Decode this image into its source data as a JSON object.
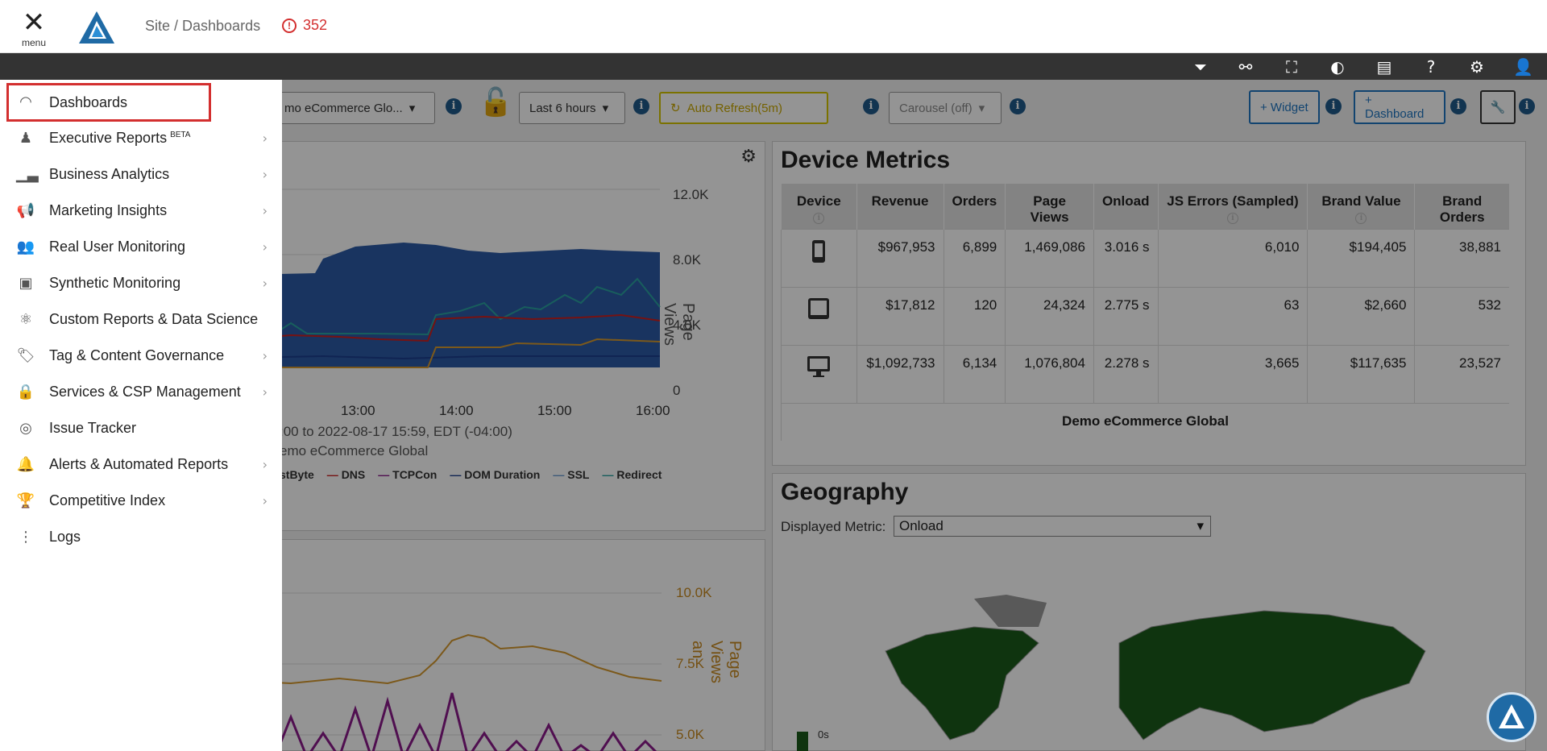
{
  "header": {
    "menu_label": "menu",
    "breadcrumb": "Site / Dashboards",
    "alert_count": "352"
  },
  "toolbar": {
    "icons": [
      "filter-icon",
      "share-icon",
      "fullscreen-icon",
      "contrast-icon",
      "film-icon",
      "help-icon",
      "gear-icon",
      "user-icon"
    ]
  },
  "controls": {
    "dashboard_select": "mo eCommerce Glo...",
    "time_range": "Last 6 hours",
    "auto_refresh": "Auto Refresh(5m)",
    "carousel": "Carousel (off)",
    "add_widget": "+ Widget",
    "add_dashboard": "+ Dashboard"
  },
  "chart1": {
    "y_ticks": [
      "12.0K",
      "8.0K",
      "4.0K",
      "0"
    ],
    "y_label": "Page Views",
    "x_ticks": [
      "13:00",
      "14:00",
      "15:00",
      "16:00"
    ],
    "caption_line1": ":00 to 2022-08-17 15:59, EDT (-04:00)",
    "caption_line2": "emo eCommerce Global",
    "legend": [
      "stByte",
      "DNS",
      "TCPCon",
      "DOM Duration",
      "SSL",
      "Redirect"
    ]
  },
  "chart2": {
    "y_ticks": [
      "10.0K",
      "7.5K",
      "5.0K"
    ],
    "y_label": "Page Views an"
  },
  "device_metrics": {
    "title": "Device Metrics",
    "headers": [
      "Device",
      "Revenue",
      "Orders",
      "Page Views",
      "Onload",
      "JS Errors (Sampled)",
      "Brand Value",
      "Brand Orders"
    ],
    "rows": [
      {
        "device": "mobile-icon",
        "revenue": "$967,953",
        "orders": "6,899",
        "page_views": "1,469,086",
        "onload": "3.016 s",
        "js_errors": "6,010",
        "brand_value": "$194,405",
        "brand_orders": "38,881"
      },
      {
        "device": "tablet-icon",
        "revenue": "$17,812",
        "orders": "120",
        "page_views": "24,324",
        "onload": "2.775 s",
        "js_errors": "63",
        "brand_value": "$2,660",
        "brand_orders": "532"
      },
      {
        "device": "desktop-icon",
        "revenue": "$1,092,733",
        "orders": "6,134",
        "page_views": "1,076,804",
        "onload": "2.278 s",
        "js_errors": "3,665",
        "brand_value": "$117,635",
        "brand_orders": "23,527"
      }
    ],
    "footer": "Demo eCommerce Global"
  },
  "geography": {
    "title": "Geography",
    "metric_label": "Displayed Metric:",
    "metric_value": "Onload",
    "scale_label": "0s"
  },
  "sidemenu": {
    "items": [
      {
        "label": "Dashboards",
        "icon": "gauge-icon",
        "chevron": false
      },
      {
        "label": "Executive Reports",
        "sup": "BETA",
        "icon": "user-tie-icon",
        "chevron": true
      },
      {
        "label": "Business Analytics",
        "icon": "bar-chart-icon",
        "chevron": true
      },
      {
        "label": "Marketing Insights",
        "icon": "megaphone-icon",
        "chevron": true
      },
      {
        "label": "Real User Monitoring",
        "icon": "users-icon",
        "chevron": true
      },
      {
        "label": "Synthetic Monitoring",
        "icon": "robot-icon",
        "chevron": true
      },
      {
        "label": "Custom Reports & Data Science",
        "icon": "atom-icon",
        "chevron": false
      },
      {
        "label": "Tag & Content Governance",
        "icon": "tag-icon",
        "chevron": true
      },
      {
        "label": "Services & CSP Management",
        "icon": "lock-icon",
        "chevron": true
      },
      {
        "label": "Issue Tracker",
        "icon": "fingerprint-icon",
        "chevron": false
      },
      {
        "label": "Alerts & Automated Reports",
        "icon": "bell-icon",
        "chevron": true
      },
      {
        "label": "Competitive Index",
        "icon": "trophy-icon",
        "chevron": true
      },
      {
        "label": "Logs",
        "icon": "sitemap-icon",
        "chevron": false
      }
    ]
  }
}
